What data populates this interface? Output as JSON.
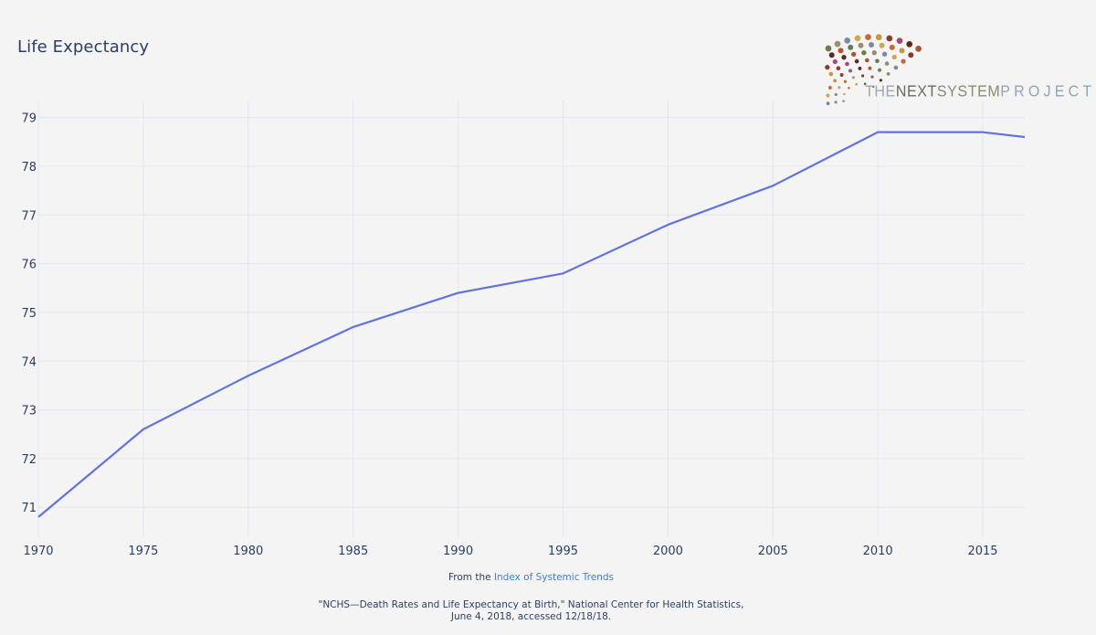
{
  "colors": {
    "line": "#6473dc",
    "grid": "#e4e7f2",
    "text": "#2a3f5f",
    "link": "#3f7fd6",
    "background": "#f4f4f5"
  },
  "logo": {
    "word_the": "THE",
    "word_next": "NEXT",
    "word_system": "SYSTEM",
    "word_project": "PROJECT",
    "icon": "dot-burst-logo-icon"
  },
  "footer": {
    "from_prefix": "From the",
    "link_text": "Index of Systemic Trends",
    "citation_line1": "\"NCHS—Death Rates and Life Expectancy at Birth,\" National Center for Health Statistics,",
    "citation_line2": "June 4, 2018, accessed 12/18/18."
  },
  "chart_data": {
    "type": "line",
    "title": "Life Expectancy",
    "xlabel": "",
    "ylabel": "",
    "x": [
      1970,
      1975,
      1980,
      1985,
      1990,
      1995,
      2000,
      2005,
      2010,
      2015,
      2017
    ],
    "series": [
      {
        "values": [
          70.8,
          72.6,
          73.7,
          74.7,
          75.4,
          75.8,
          76.8,
          77.6,
          78.7,
          78.7,
          78.6
        ]
      }
    ],
    "xlim": [
      1970,
      2017
    ],
    "ylim": [
      70.76,
      79.2
    ],
    "x_ticks": [
      1970,
      1975,
      1980,
      1985,
      1990,
      1995,
      2000,
      2005,
      2010,
      2015
    ],
    "y_ticks": [
      71,
      72,
      73,
      74,
      75,
      76,
      77,
      78,
      79
    ],
    "grid": true,
    "legend": "none"
  }
}
